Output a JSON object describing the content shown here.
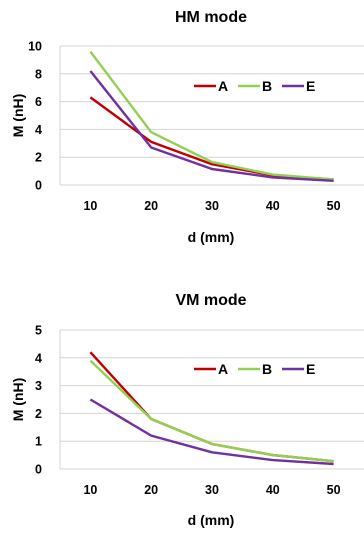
{
  "chart_data": [
    {
      "type": "line",
      "title": "HM mode",
      "xlabel": "d (mm)",
      "ylabel": "M (nH)",
      "x": [
        10,
        20,
        30,
        40,
        50
      ],
      "ylim": [
        0,
        10
      ],
      "yticks": [
        0,
        2,
        4,
        6,
        8,
        10
      ],
      "grid": true,
      "legend_position": "top-right",
      "series": [
        {
          "name": "A",
          "color": "#c00000",
          "values": [
            6.3,
            3.1,
            1.5,
            0.7,
            0.4
          ]
        },
        {
          "name": "B",
          "color": "#92d050",
          "values": [
            9.6,
            3.8,
            1.65,
            0.75,
            0.4
          ]
        },
        {
          "name": "E",
          "color": "#7030a0",
          "values": [
            8.2,
            2.7,
            1.15,
            0.55,
            0.3
          ]
        }
      ]
    },
    {
      "type": "line",
      "title": "VM mode",
      "xlabel": "d (mm)",
      "ylabel": "M (nH)",
      "x": [
        10,
        20,
        30,
        40,
        50
      ],
      "ylim": [
        0,
        5
      ],
      "yticks": [
        0,
        1,
        2,
        3,
        4,
        5
      ],
      "grid": true,
      "legend_position": "top-right",
      "series": [
        {
          "name": "A",
          "color": "#c00000",
          "values": [
            4.2,
            1.8,
            0.9,
            0.5,
            0.28
          ]
        },
        {
          "name": "B",
          "color": "#92d050",
          "values": [
            3.9,
            1.8,
            0.9,
            0.5,
            0.28
          ]
        },
        {
          "name": "E",
          "color": "#7030a0",
          "values": [
            2.5,
            1.2,
            0.6,
            0.32,
            0.18
          ]
        }
      ]
    }
  ]
}
